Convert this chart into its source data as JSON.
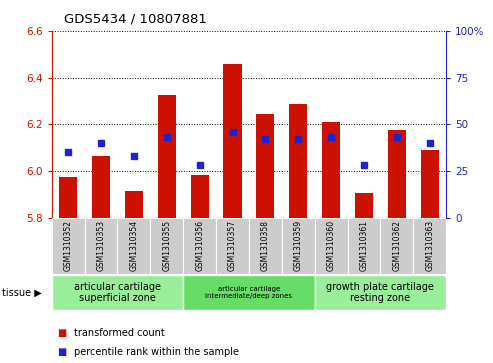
{
  "title": "GDS5434 / 10807881",
  "samples": [
    "GSM1310352",
    "GSM1310353",
    "GSM1310354",
    "GSM1310355",
    "GSM1310356",
    "GSM1310357",
    "GSM1310358",
    "GSM1310359",
    "GSM1310360",
    "GSM1310361",
    "GSM1310362",
    "GSM1310363"
  ],
  "bar_values": [
    5.975,
    6.065,
    5.915,
    6.325,
    5.985,
    6.46,
    6.245,
    6.285,
    6.21,
    5.905,
    6.175,
    6.09
  ],
  "bar_base": 5.8,
  "percentile_values": [
    35,
    40,
    33,
    43,
    28,
    46,
    42,
    42,
    43,
    28,
    43,
    40
  ],
  "ylim_left": [
    5.8,
    6.6
  ],
  "ylim_right": [
    0,
    100
  ],
  "yticks_left": [
    5.8,
    6.0,
    6.2,
    6.4,
    6.6
  ],
  "yticks_right": [
    0,
    25,
    50,
    75,
    100
  ],
  "bar_color": "#cc1100",
  "dot_color": "#2222cc",
  "background_color": "#ffffff",
  "grid_color": "#000000",
  "tissue_groups": [
    {
      "label": "articular cartilage\nsuperficial zone",
      "start": 0,
      "end": 3,
      "color": "#99ee99"
    },
    {
      "label": "articular cartilage\nintermediate/deep zones",
      "start": 4,
      "end": 7,
      "color": "#66dd66"
    },
    {
      "label": "growth plate cartilage\nresting zone",
      "start": 8,
      "end": 11,
      "color": "#99ee99"
    }
  ],
  "tissue_label": "tissue",
  "legend_bar_label": "transformed count",
  "legend_dot_label": "percentile rank within the sample",
  "left_tick_color": "#cc1100",
  "right_tick_color": "#2222cc",
  "bar_width": 0.55
}
